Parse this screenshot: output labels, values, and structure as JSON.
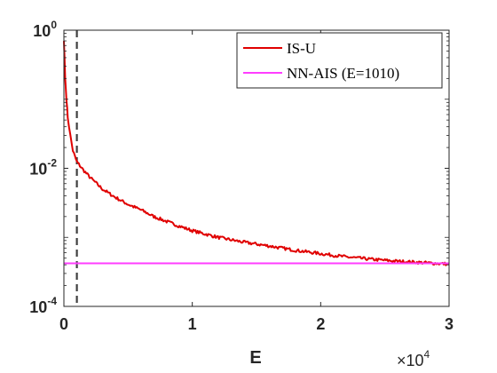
{
  "chart_data": {
    "type": "line",
    "title": "",
    "xlabel": "E",
    "ylabel": "",
    "x_scale": "linear",
    "y_scale": "log",
    "xlim": [
      0,
      30000
    ],
    "ylim": [
      0.0001,
      1
    ],
    "x_ticks": [
      {
        "value": 0,
        "label": "0"
      },
      {
        "value": 10000,
        "label": "1"
      },
      {
        "value": 20000,
        "label": "2"
      },
      {
        "value": 30000,
        "label": "3"
      }
    ],
    "x_multiplier": {
      "base": "×10",
      "exponent": "4"
    },
    "y_ticks": [
      {
        "value": 0.0001,
        "base": "10",
        "exponent": "-4"
      },
      {
        "value": 0.01,
        "base": "10",
        "exponent": "-2"
      },
      {
        "value": 1,
        "base": "10",
        "exponent": "0"
      }
    ],
    "vline": {
      "x": 1010,
      "style": "dashed",
      "color": "#404040"
    },
    "legend_position": "top-right",
    "grid": false,
    "series": [
      {
        "name": "IS-U",
        "color": "#e00000",
        "x": [
          0,
          50,
          100,
          200,
          300,
          500,
          700,
          1000,
          1500,
          2000,
          3000,
          4000,
          5000,
          6000,
          7000,
          8000,
          9000,
          10000,
          12000,
          14000,
          16000,
          18000,
          20000,
          22000,
          24000,
          26000,
          28000,
          30000
        ],
        "y": [
          0.7,
          0.4,
          0.2,
          0.1,
          0.055,
          0.03,
          0.018,
          0.0125,
          0.0095,
          0.0075,
          0.005,
          0.0038,
          0.003,
          0.0025,
          0.002,
          0.0017,
          0.00145,
          0.00125,
          0.001,
          0.00085,
          0.00075,
          0.00065,
          0.00058,
          0.00052,
          0.00048,
          0.00045,
          0.00043,
          0.00041
        ]
      },
      {
        "name": "NN-AIS (E=1010)",
        "color": "#ff3dff",
        "x": [
          0,
          30000
        ],
        "y": [
          0.00042,
          0.00042
        ]
      }
    ]
  }
}
